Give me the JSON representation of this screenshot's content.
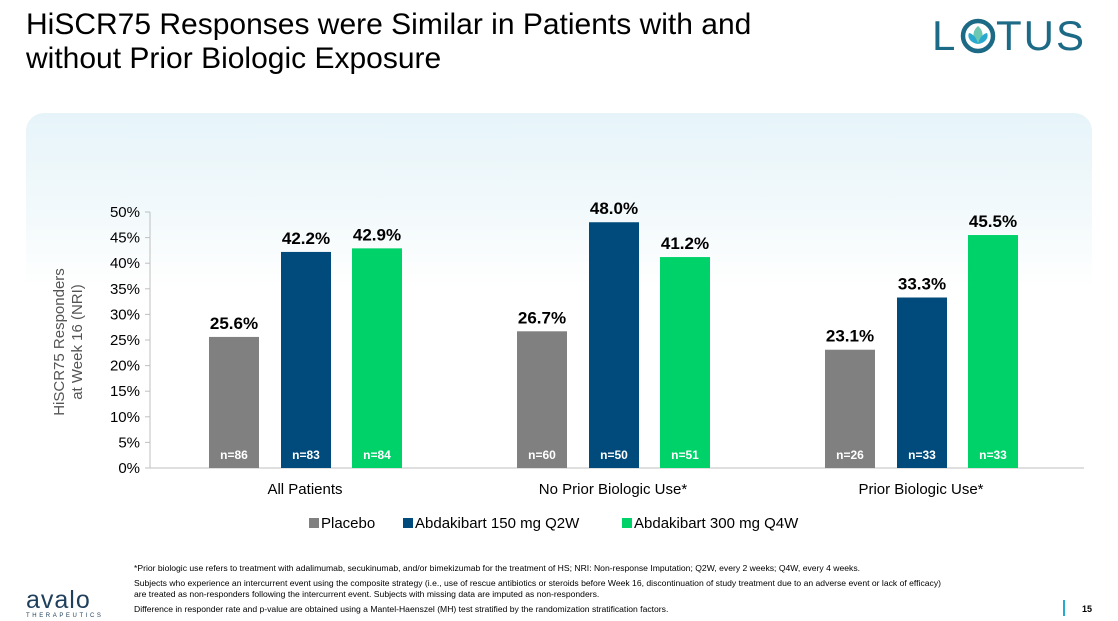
{
  "header": {
    "title_line1": "HiSCR75 Responses were Similar in Patients with and",
    "title_line2": "without Prior Biologic Exposure",
    "logo_text": "LOTUS"
  },
  "colors": {
    "placebo": "#808080",
    "abdakibart_150": "#004b7b",
    "abdakibart_300": "#00d26a",
    "logo": "#1d6a86",
    "accent": "#2aa9cf"
  },
  "chart_data": {
    "type": "bar",
    "title": "",
    "xlabel": "",
    "ylabel": "HiSCR75 Responders at Week 16 (NRI)",
    "ylabel_lines": [
      "HiSCR75 Responders",
      "at Week 16 (NRI)"
    ],
    "ylim": [
      0,
      50
    ],
    "yticks": [
      "0%",
      "5%",
      "10%",
      "15%",
      "20%",
      "25%",
      "30%",
      "35%",
      "40%",
      "45%",
      "50%"
    ],
    "grid": false,
    "legend_position": "bottom",
    "categories": [
      "All Patients",
      "No Prior Biologic Use*",
      "Prior Biologic Use*"
    ],
    "series": [
      {
        "name": "Placebo",
        "color": "#808080",
        "values": [
          25.6,
          26.7,
          23.1
        ],
        "labels": [
          "25.6%",
          "26.7%",
          "23.1%"
        ],
        "n": [
          "n=86",
          "n=60",
          "n=26"
        ]
      },
      {
        "name": "Abdakibart 150 mg Q2W",
        "color": "#004b7b",
        "values": [
          42.2,
          48.0,
          33.3
        ],
        "labels": [
          "42.2%",
          "48.0%",
          "33.3%"
        ],
        "n": [
          "n=83",
          "n=50",
          "n=33"
        ]
      },
      {
        "name": "Abdakibart 300 mg Q4W",
        "color": "#00d26a",
        "values": [
          42.9,
          41.2,
          45.5
        ],
        "labels": [
          "42.9%",
          "41.2%",
          "45.5%"
        ],
        "n": [
          "n=84",
          "n=51",
          "n=33"
        ]
      }
    ]
  },
  "footnotes": {
    "line1": "*Prior biologic use refers to treatment with adalimumab, secukinumab, and/or bimekizumab for the treatment of HS; NRI: Non-response Imputation; Q2W, every 2 weeks; Q4W, every 4 weeks.",
    "line2": "Subjects who experience an intercurrent event using the composite strategy (i.e., use of rescue antibiotics or steroids before Week 16, discontinuation of study treatment due to an adverse event or lack of efficacy)",
    "line3": "are treated as non-responders following the intercurrent event. Subjects with missing data are imputed as non-responders.",
    "line4": "Difference in responder rate and p-value are obtained using a Mantel-Haenszel (MH) test stratified by the randomization stratification factors."
  },
  "footer": {
    "company_name": "avalo",
    "company_sub": "THERAPEUTICS",
    "page_number": "15"
  }
}
